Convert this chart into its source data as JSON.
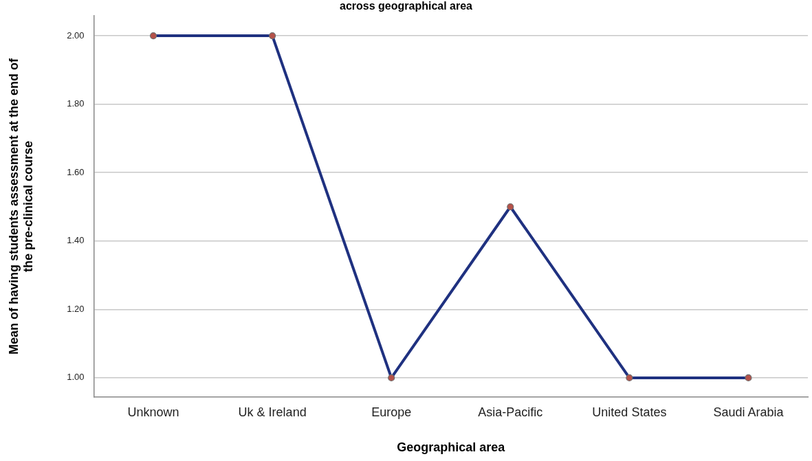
{
  "chart_data": {
    "type": "line",
    "title": "across geographical area",
    "xlabel": "Geographical area",
    "ylabel": "Mean of having students assessment at the end of the pre-clinical course",
    "categories": [
      "Unknown",
      "Uk & Ireland",
      "Europe",
      "Asia-Pacific",
      "United States",
      "Saudi Arabia"
    ],
    "series": [
      {
        "color": "#1f3180",
        "values": [
          2.0,
          2.0,
          1.0,
          1.5,
          1.0,
          1.0
        ]
      }
    ],
    "ylim": [
      0.944,
      2.058
    ],
    "yticks": [
      {
        "value": 1,
        "label": "1.00"
      },
      {
        "value": 1.2,
        "label": "1.20"
      },
      {
        "value": 1.4,
        "label": "1.40"
      },
      {
        "value": 1.6,
        "label": "1.60"
      },
      {
        "value": 1.8,
        "label": "1.80"
      },
      {
        "value": 2,
        "label": "2.00"
      }
    ],
    "grid": "y",
    "legend": false,
    "marker": "circle",
    "line_style": "solid"
  }
}
